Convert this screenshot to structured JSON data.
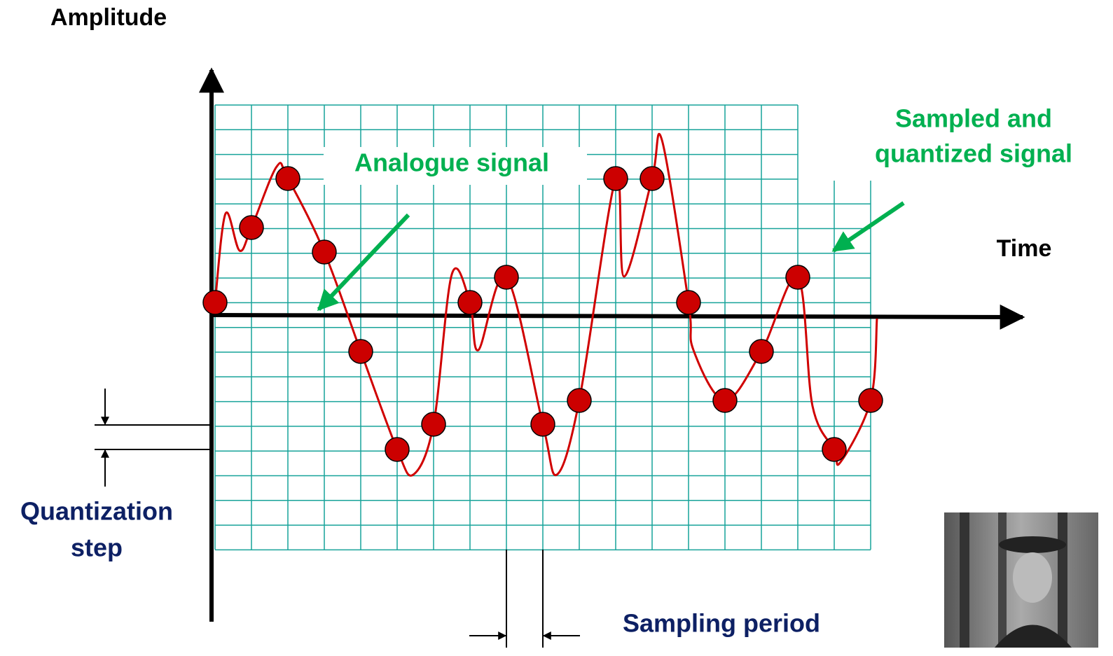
{
  "axes": {
    "y_label": "Amplitude",
    "x_label": "Time"
  },
  "annotations": {
    "analogue": "Analogue signal",
    "sampled": [
      "Sampled and",
      "quantized signal"
    ],
    "quantization_step": [
      "Quantization",
      "step"
    ],
    "sampling_period": "Sampling period"
  }
}
